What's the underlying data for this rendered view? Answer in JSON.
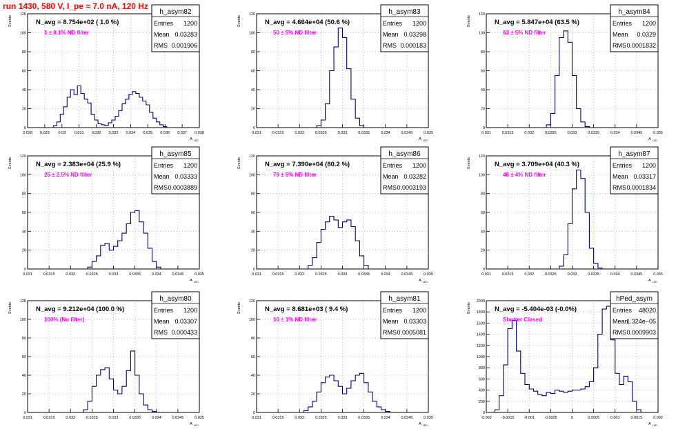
{
  "title": "run 1430,   580 V, I_pe ≈ 7.0 nA, 120 Hz",
  "colors": {
    "line": "#00007f",
    "annotation": "#ff00ff",
    "title": "#ff0000",
    "grid": "#b0b0b0"
  },
  "chart_data": [
    {
      "type": "histogram",
      "name": "h_asym82",
      "ylabel": "Events",
      "xlabel": "A_LED",
      "navg": "N_avg = 8.754e+02 ( 1.0 %)",
      "note": "1 ± 0.1% ND filter",
      "stats": [
        [
          "Entries",
          "1200"
        ],
        [
          "Mean",
          "0.03283"
        ],
        [
          "RMS",
          "0.001906"
        ]
      ],
      "xlim": [
        0.028,
        0.038
      ],
      "ylim": [
        0,
        120
      ],
      "xticks": [
        0.028,
        0.029,
        0.03,
        0.031,
        0.032,
        0.033,
        0.034,
        0.035,
        0.036,
        0.037,
        0.038
      ],
      "xticklabels": [
        "0.028",
        "0.029",
        "0.03",
        "0.031",
        "0.032",
        "0.033",
        "0.034",
        "0.035",
        "0.036",
        "0.037",
        "0.038"
      ],
      "yticks": [
        0,
        20,
        40,
        60,
        80,
        100,
        120
      ],
      "x": [
        0.0296,
        0.0298,
        0.03,
        0.0302,
        0.0304,
        0.0306,
        0.0308,
        0.031,
        0.0312,
        0.0314,
        0.0316,
        0.0318,
        0.032,
        0.0322,
        0.0324,
        0.0326,
        0.0328,
        0.033,
        0.0332,
        0.0334,
        0.0336,
        0.0338,
        0.034,
        0.0342,
        0.0344,
        0.0346,
        0.0348,
        0.035,
        0.0352,
        0.0354,
        0.0356,
        0.0358,
        0.036
      ],
      "y": [
        2,
        6,
        14,
        22,
        32,
        40,
        35,
        44,
        36,
        30,
        26,
        14,
        8,
        4,
        3,
        2,
        5,
        8,
        12,
        18,
        25,
        30,
        35,
        38,
        36,
        32,
        28,
        24,
        16,
        10,
        6,
        3,
        1
      ]
    },
    {
      "type": "histogram",
      "name": "h_asym83",
      "ylabel": "Events",
      "xlabel": "A_LED",
      "navg": "N_avg = 4.664e+04 (50.6 %)",
      "note": "50 ± 5% ND filter",
      "stats": [
        [
          "Entries",
          "1200"
        ],
        [
          "Mean",
          "0.03298"
        ],
        [
          "RMS",
          "0.000183"
        ]
      ],
      "xlim": [
        0.031,
        0.035
      ],
      "ylim": [
        0,
        120
      ],
      "xticks": [
        0.031,
        0.0315,
        0.032,
        0.0325,
        0.033,
        0.0335,
        0.034,
        0.0345,
        0.035
      ],
      "xticklabels": [
        "0.031",
        "0.0315",
        "0.032",
        "0.0325",
        "0.033",
        "0.0335",
        "0.034",
        "0.0345",
        "0.035"
      ],
      "yticks": [
        0,
        20,
        40,
        60,
        80,
        100,
        120
      ],
      "x": [
        0.03245,
        0.03255,
        0.03265,
        0.03275,
        0.03285,
        0.03295,
        0.03305,
        0.03315,
        0.03325,
        0.03335,
        0.03345
      ],
      "y": [
        2,
        8,
        25,
        60,
        85,
        105,
        95,
        62,
        30,
        10,
        2
      ]
    },
    {
      "type": "histogram",
      "name": "h_asym84",
      "ylabel": "Events",
      "xlabel": "A_LED",
      "navg": "N_avg = 5.847e+04 (63.5 %)",
      "note": "63 ± 5% ND filter",
      "stats": [
        [
          "Entries",
          "1200"
        ],
        [
          "Mean",
          "0.0329"
        ],
        [
          "RMS",
          "0.0001832"
        ]
      ],
      "xlim": [
        0.031,
        0.035
      ],
      "ylim": [
        0,
        120
      ],
      "xticks": [
        0.031,
        0.0315,
        0.032,
        0.0325,
        0.033,
        0.0335,
        0.034,
        0.0345,
        0.035
      ],
      "xticklabels": [
        "0.031",
        "0.0315",
        "0.032",
        "0.0325",
        "0.033",
        "0.0335",
        "0.034",
        "0.0345",
        "0.035"
      ],
      "yticks": [
        0,
        20,
        40,
        60,
        80,
        100,
        120
      ],
      "x": [
        0.03245,
        0.03255,
        0.03265,
        0.03275,
        0.03285,
        0.03295,
        0.03305,
        0.03315,
        0.03325,
        0.03335
      ],
      "y": [
        3,
        15,
        55,
        95,
        102,
        90,
        55,
        20,
        6,
        1
      ]
    },
    {
      "type": "histogram",
      "name": "h_asym85",
      "ylabel": "Events",
      "xlabel": "A_LED",
      "navg": "N_avg = 2.383e+04 (25.9 %)",
      "note": "25 ± 2.5% ND filter",
      "stats": [
        [
          "Entries",
          "1200"
        ],
        [
          "Mean",
          "0.03333"
        ],
        [
          "RMS",
          "0.0003889"
        ]
      ],
      "xlim": [
        0.031,
        0.035
      ],
      "ylim": [
        0,
        120
      ],
      "xticks": [
        0.031,
        0.0315,
        0.032,
        0.0325,
        0.033,
        0.0335,
        0.034,
        0.0345,
        0.035
      ],
      "xticklabels": [
        "0.031",
        "0.0315",
        "0.032",
        "0.0325",
        "0.033",
        "0.0335",
        "0.034",
        "0.0345",
        "0.035"
      ],
      "yticks": [
        0,
        20,
        40,
        60,
        80,
        100,
        120
      ],
      "x": [
        0.03245,
        0.03255,
        0.03265,
        0.03275,
        0.03285,
        0.03295,
        0.03305,
        0.03315,
        0.03325,
        0.03335,
        0.03345,
        0.03355,
        0.03365,
        0.03375,
        0.03385,
        0.03395,
        0.03405
      ],
      "y": [
        2,
        8,
        14,
        25,
        27,
        20,
        24,
        30,
        38,
        48,
        60,
        62,
        50,
        38,
        22,
        8,
        2
      ]
    },
    {
      "type": "histogram",
      "name": "h_asym86",
      "ylabel": "Events",
      "xlabel": "A_LED",
      "navg": "N_avg = 7.390e+04 (80.2 %)",
      "note": "79 ± 5% ND filter",
      "stats": [
        [
          "Entries",
          "1200"
        ],
        [
          "Mean",
          "0.03282"
        ],
        [
          "RMS",
          "0.0003193"
        ]
      ],
      "xlim": [
        0.031,
        0.035
      ],
      "ylim": [
        0,
        120
      ],
      "xticks": [
        0.031,
        0.0315,
        0.032,
        0.0325,
        0.033,
        0.0335,
        0.034,
        0.0345,
        0.035
      ],
      "xticklabels": [
        "0.031",
        "0.0315",
        "0.032",
        "0.0325",
        "0.033",
        "0.0335",
        "0.034",
        "0.0345",
        "0.035"
      ],
      "yticks": [
        0,
        20,
        40,
        60,
        80,
        100,
        120
      ],
      "x": [
        0.03225,
        0.03235,
        0.03245,
        0.03255,
        0.03265,
        0.03275,
        0.03285,
        0.03295,
        0.03305,
        0.03315,
        0.03325,
        0.03335,
        0.03345,
        0.03355
      ],
      "y": [
        4,
        12,
        28,
        42,
        50,
        56,
        52,
        44,
        50,
        52,
        45,
        30,
        14,
        4
      ]
    },
    {
      "type": "histogram",
      "name": "h_asym87",
      "ylabel": "Events",
      "xlabel": "A_LED",
      "navg": "N_avg = 3.709e+04 (40.3 %)",
      "note": "40 ± 4% ND filter",
      "stats": [
        [
          "Entries",
          "1200"
        ],
        [
          "Mean",
          "0.03317"
        ],
        [
          "RMS",
          "0.0001834"
        ]
      ],
      "xlim": [
        0.031,
        0.035
      ],
      "ylim": [
        0,
        120
      ],
      "xticks": [
        0.031,
        0.0315,
        0.032,
        0.0325,
        0.033,
        0.0335,
        0.034,
        0.0345,
        0.035
      ],
      "xticklabels": [
        "0.031",
        "0.0315",
        "0.032",
        "0.0325",
        "0.033",
        "0.0335",
        "0.034",
        "0.0345",
        "0.035"
      ],
      "yticks": [
        0,
        20,
        40,
        60,
        80,
        100,
        120
      ],
      "x": [
        0.03275,
        0.03285,
        0.03295,
        0.03305,
        0.03315,
        0.03325,
        0.03335,
        0.03345,
        0.03355,
        0.03365
      ],
      "y": [
        3,
        15,
        48,
        85,
        105,
        96,
        60,
        22,
        6,
        1
      ]
    },
    {
      "type": "histogram",
      "name": "h_asym80",
      "ylabel": "Events",
      "xlabel": "A_LED",
      "navg": "N_avg = 9.212e+04 (100.0 %)",
      "note": "100% (No filter)",
      "stats": [
        [
          "Entries",
          "1200"
        ],
        [
          "Mean",
          "0.03307"
        ],
        [
          "RMS",
          "0.000433"
        ]
      ],
      "xlim": [
        0.031,
        0.035
      ],
      "ylim": [
        0,
        120
      ],
      "xticks": [
        0.031,
        0.0315,
        0.032,
        0.0325,
        0.033,
        0.0335,
        0.034,
        0.0345,
        0.035
      ],
      "xticklabels": [
        "0.031",
        "0.0315",
        "0.032",
        "0.0325",
        "0.033",
        "0.0335",
        "0.034",
        "0.0345",
        "0.035"
      ],
      "yticks": [
        0,
        20,
        40,
        60,
        80,
        100,
        120
      ],
      "x": [
        0.03235,
        0.03245,
        0.03255,
        0.03265,
        0.03275,
        0.03285,
        0.03295,
        0.03305,
        0.03315,
        0.03325,
        0.03335,
        0.03345,
        0.03355,
        0.03365,
        0.03375,
        0.03385,
        0.03395
      ],
      "y": [
        3,
        12,
        28,
        40,
        46,
        48,
        36,
        24,
        20,
        28,
        45,
        66,
        40,
        20,
        8,
        3,
        1
      ]
    },
    {
      "type": "histogram",
      "name": "h_asym81",
      "ylabel": "Events",
      "xlabel": "A_LED",
      "navg": "N_avg = 8.681e+03 ( 9.4 %)",
      "note": "10 ± 1% ND filter",
      "stats": [
        [
          "Entries",
          "1200"
        ],
        [
          "Mean",
          "0.03303"
        ],
        [
          "RMS",
          "0.0005081"
        ]
      ],
      "xlim": [
        0.031,
        0.035
      ],
      "ylim": [
        0,
        120
      ],
      "xticks": [
        0.031,
        0.0315,
        0.032,
        0.0325,
        0.033,
        0.0335,
        0.034,
        0.0345,
        0.035
      ],
      "xticklabels": [
        "0.031",
        "0.0315",
        "0.032",
        "0.0325",
        "0.033",
        "0.0335",
        "0.034",
        "0.0345",
        "0.035"
      ],
      "yticks": [
        0,
        20,
        40,
        60,
        80,
        100,
        120
      ],
      "x": [
        0.03215,
        0.03225,
        0.03235,
        0.03245,
        0.03255,
        0.03265,
        0.03275,
        0.03285,
        0.03295,
        0.03305,
        0.03315,
        0.03325,
        0.03335,
        0.03345,
        0.03355,
        0.03365,
        0.03375,
        0.03385,
        0.03395,
        0.03405
      ],
      "y": [
        2,
        6,
        12,
        22,
        32,
        38,
        40,
        34,
        28,
        20,
        26,
        34,
        40,
        42,
        32,
        22,
        12,
        6,
        3,
        1
      ]
    },
    {
      "type": "histogram",
      "name": "hPed_asym",
      "ylabel": "Events",
      "xlabel": "A_LED",
      "navg": "N_avg = -5.404e-03 (-0.0%)",
      "note": "Shutter Closed",
      "stats": [
        [
          "Entries",
          "48020"
        ],
        [
          "Mean",
          "1.324e−05"
        ],
        [
          "RMS",
          "0.0009903"
        ]
      ],
      "xlim": [
        -0.002,
        0.002
      ],
      "ylim": [
        0,
        2000
      ],
      "xticks": [
        -0.002,
        -0.0015,
        -0.001,
        -0.0005,
        0,
        0.0005,
        0.001,
        0.0015,
        0.002
      ],
      "xticklabels": [
        "-0.002",
        "-0.0015",
        "-0.001",
        "-0.0005",
        "0",
        "0.0005",
        "0.001",
        "0.0015",
        "0.002"
      ],
      "yticks": [
        0,
        200,
        400,
        600,
        800,
        1000,
        1200,
        1400,
        1600,
        1800,
        2000
      ],
      "x": [
        -0.00175,
        -0.00165,
        -0.00155,
        -0.00145,
        -0.00135,
        -0.00125,
        -0.00115,
        -0.00105,
        -0.00095,
        -0.00085,
        -0.00075,
        -0.00065,
        -0.00055,
        -0.00045,
        -0.00035,
        -0.00025,
        -0.00015,
        -5e-05,
        5e-05,
        0.00015,
        0.00025,
        0.00035,
        0.00045,
        0.00055,
        0.00065,
        0.00075,
        0.00085,
        0.00095,
        0.00105,
        0.00115,
        0.00125,
        0.00135,
        0.00145,
        0.00155
      ],
      "y": [
        50,
        300,
        850,
        1500,
        1650,
        1100,
        700,
        500,
        420,
        380,
        320,
        300,
        360,
        340,
        400,
        380,
        360,
        380,
        400,
        400,
        420,
        460,
        550,
        800,
        1400,
        1850,
        1900,
        1300,
        700,
        500,
        650,
        550,
        200,
        50
      ]
    }
  ]
}
